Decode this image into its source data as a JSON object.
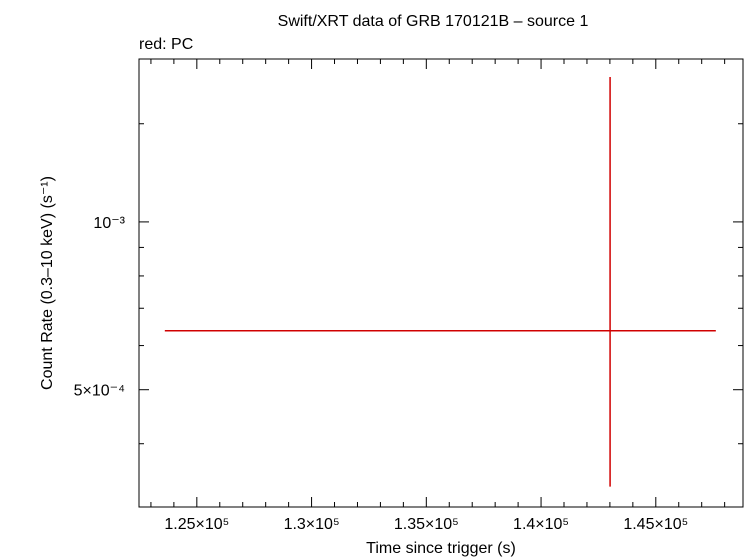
{
  "chart_data": {
    "type": "errorbar",
    "title": "Swift/XRT data of GRB 170121B – source 1",
    "subtitle": "red: PC",
    "xlabel": "Time since trigger (s)",
    "ylabel": "Count Rate (0.3–10 keV) (s⁻¹)",
    "xlim": [
      122480,
      148800
    ],
    "ylim": [
      0.000308,
      0.00196
    ],
    "yscale": "log",
    "xticks": [
      {
        "value": 125000,
        "label": "1.25×10⁵"
      },
      {
        "value": 130000,
        "label": "1.3×10⁵"
      },
      {
        "value": 135000,
        "label": "1.35×10⁵"
      },
      {
        "value": 140000,
        "label": "1.4×10⁵"
      },
      {
        "value": 145000,
        "label": "1.45×10⁵"
      }
    ],
    "xminorticks": [
      123000,
      124000,
      126000,
      127000,
      128000,
      129000,
      131000,
      132000,
      133000,
      134000,
      136000,
      137000,
      138000,
      139000,
      141000,
      142000,
      143000,
      144000,
      146000,
      147000,
      148000
    ],
    "yticks": [
      {
        "value": 0.0005,
        "label": "5×10⁻⁴"
      },
      {
        "value": 0.001,
        "label": "10⁻³"
      }
    ],
    "yminorticks": [
      0.0004,
      0.0006,
      0.0007,
      0.0008,
      0.0009,
      0.0015
    ],
    "series": [
      {
        "name": "PC",
        "color": "#d00000",
        "x": [
          143008
        ],
        "xerr_minus": [
          19403
        ],
        "xerr_plus": [
          4608
        ],
        "values": [
          0.000638
        ],
        "yerr_minus": [
          0.000303
        ],
        "yerr_plus": [
          0.001182
        ]
      }
    ]
  }
}
